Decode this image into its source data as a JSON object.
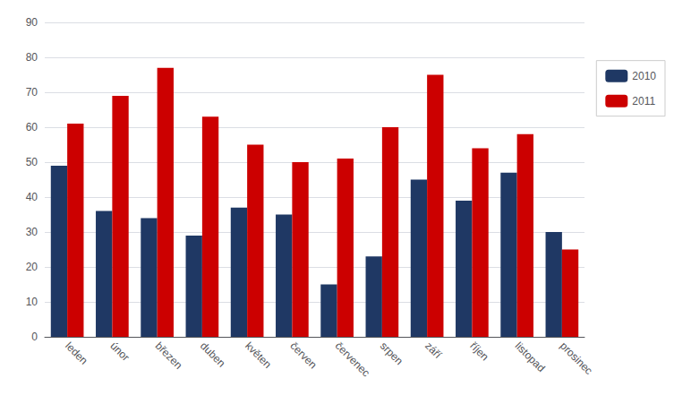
{
  "chart_data": {
    "type": "bar",
    "categories": [
      "leden",
      "únor",
      "březen",
      "duben",
      "květen",
      "červen",
      "červenec",
      "srpen",
      "září",
      "říjen",
      "listopad",
      "prosinec"
    ],
    "series": [
      {
        "name": "2010",
        "color": "#1F3864",
        "values": [
          49,
          36,
          34,
          29,
          37,
          35,
          15,
          23,
          45,
          39,
          47,
          30
        ]
      },
      {
        "name": "2011",
        "color": "#CC0000",
        "values": [
          61,
          69,
          77,
          63,
          55,
          50,
          51,
          60,
          75,
          54,
          58,
          25
        ]
      }
    ],
    "ylim": [
      0,
      90
    ],
    "yticks": [
      0,
      10,
      20,
      30,
      40,
      50,
      60,
      70,
      80,
      90
    ],
    "grid": true,
    "legend": "right"
  }
}
